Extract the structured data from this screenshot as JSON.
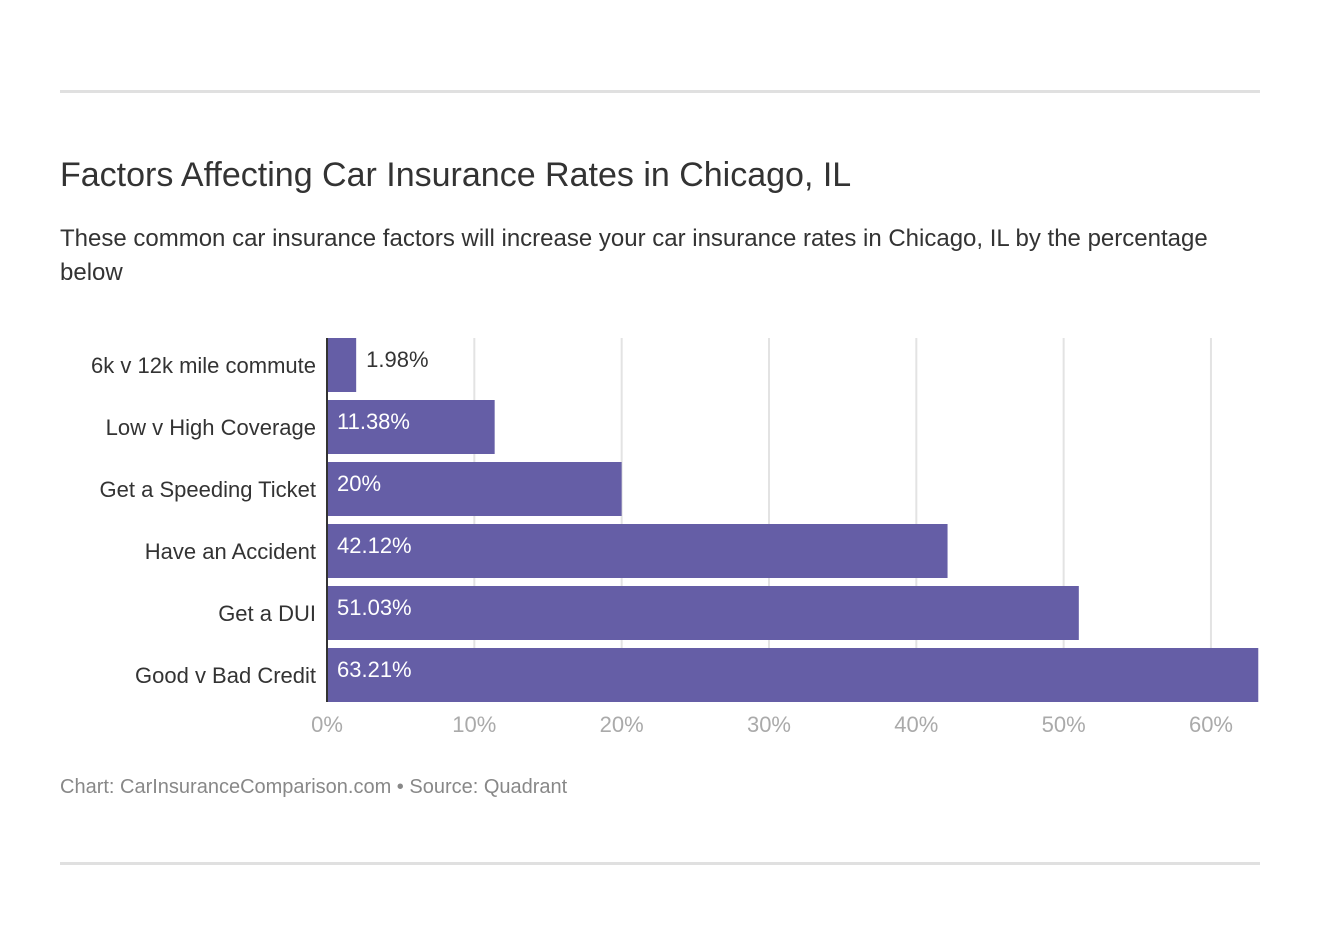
{
  "title": "Factors Affecting Car Insurance Rates in Chicago, IL",
  "subtitle": "These common car insurance factors will increase your car insurance rates in Chicago, IL by the percentage below",
  "footer": "Chart: CarInsuranceComparison.com • Source: Quadrant",
  "chart_data": {
    "type": "bar",
    "orientation": "horizontal",
    "categories": [
      "6k v 12k mile commute",
      "Low v High Coverage",
      "Get a Speeding Ticket",
      "Have an Accident",
      "Get a DUI",
      "Good v Bad Credit"
    ],
    "values": [
      1.98,
      11.38,
      20,
      42.12,
      51.03,
      63.21
    ],
    "data_labels": [
      "1.98%",
      "11.38%",
      "20%",
      "42.12%",
      "51.03%",
      "63.21%"
    ],
    "xlim": [
      0,
      63.21
    ],
    "xticks": [
      0,
      10,
      20,
      30,
      40,
      50,
      60
    ],
    "xtick_labels": [
      "0%",
      "10%",
      "20%",
      "30%",
      "40%",
      "50%",
      "60%"
    ],
    "grid": true,
    "bar_color": "#655ea6"
  }
}
